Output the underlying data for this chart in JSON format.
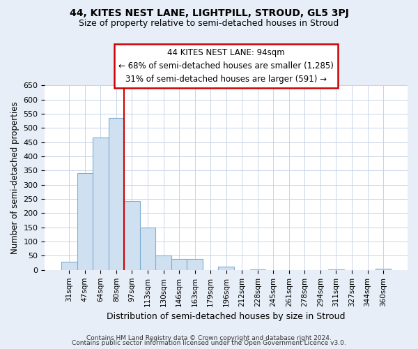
{
  "title": "44, KITES NEST LANE, LIGHTPILL, STROUD, GL5 3PJ",
  "subtitle": "Size of property relative to semi-detached houses in Stroud",
  "xlabel": "Distribution of semi-detached houses by size in Stroud",
  "ylabel": "Number of semi-detached properties",
  "bar_labels": [
    "31sqm",
    "47sqm",
    "64sqm",
    "80sqm",
    "97sqm",
    "113sqm",
    "130sqm",
    "146sqm",
    "163sqm",
    "179sqm",
    "196sqm",
    "212sqm",
    "228sqm",
    "245sqm",
    "261sqm",
    "278sqm",
    "294sqm",
    "311sqm",
    "327sqm",
    "344sqm",
    "360sqm"
  ],
  "bar_values": [
    30,
    340,
    467,
    535,
    243,
    150,
    50,
    40,
    38,
    0,
    12,
    0,
    3,
    0,
    0,
    0,
    0,
    2,
    0,
    0,
    4
  ],
  "bar_color_fill": "#cfe0f0",
  "bar_color_edge": "#7cafd4",
  "vline_color": "#cc0000",
  "vline_position": 3.5,
  "annotation_line1": "44 KITES NEST LANE: 94sqm",
  "annotation_line2": "← 68% of semi-detached houses are smaller (1,285)",
  "annotation_line3": "31% of semi-detached houses are larger (591) →",
  "ylim": [
    0,
    650
  ],
  "yticks": [
    0,
    50,
    100,
    150,
    200,
    250,
    300,
    350,
    400,
    450,
    500,
    550,
    600,
    650
  ],
  "footer1": "Contains HM Land Registry data © Crown copyright and database right 2024.",
  "footer2": "Contains public sector information licensed under the Open Government Licence v3.0.",
  "background_color": "#e8eef7",
  "plot_bg_color": "#ffffff",
  "grid_color": "#c8d4e8"
}
